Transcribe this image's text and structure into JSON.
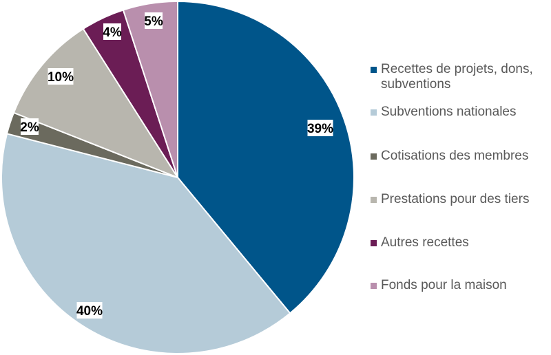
{
  "chart_data": {
    "type": "pie",
    "title": "",
    "start_angle": "12 o'clock",
    "direction": "clockwise",
    "legend_position": "right",
    "slices": [
      {
        "label": "Recettes de projets, dons, subventions",
        "value": 39,
        "data_label": "39%",
        "color": "#00558a"
      },
      {
        "label": "Subventions nationales",
        "value": 40,
        "data_label": "40%",
        "color": "#b5cbd8"
      },
      {
        "label": "Cotisations des membres",
        "value": 2,
        "data_label": "2%",
        "color": "#6b6a5e"
      },
      {
        "label": "Prestations pour des tiers",
        "value": 10,
        "data_label": "10%",
        "color": "#b8b6ae"
      },
      {
        "label": "Autres recettes",
        "value": 4,
        "data_label": "4%",
        "color": "#6b1d55"
      },
      {
        "label": "Fonds pour la maison",
        "value": 5,
        "data_label": "5%",
        "color": "#b98fad"
      }
    ]
  }
}
